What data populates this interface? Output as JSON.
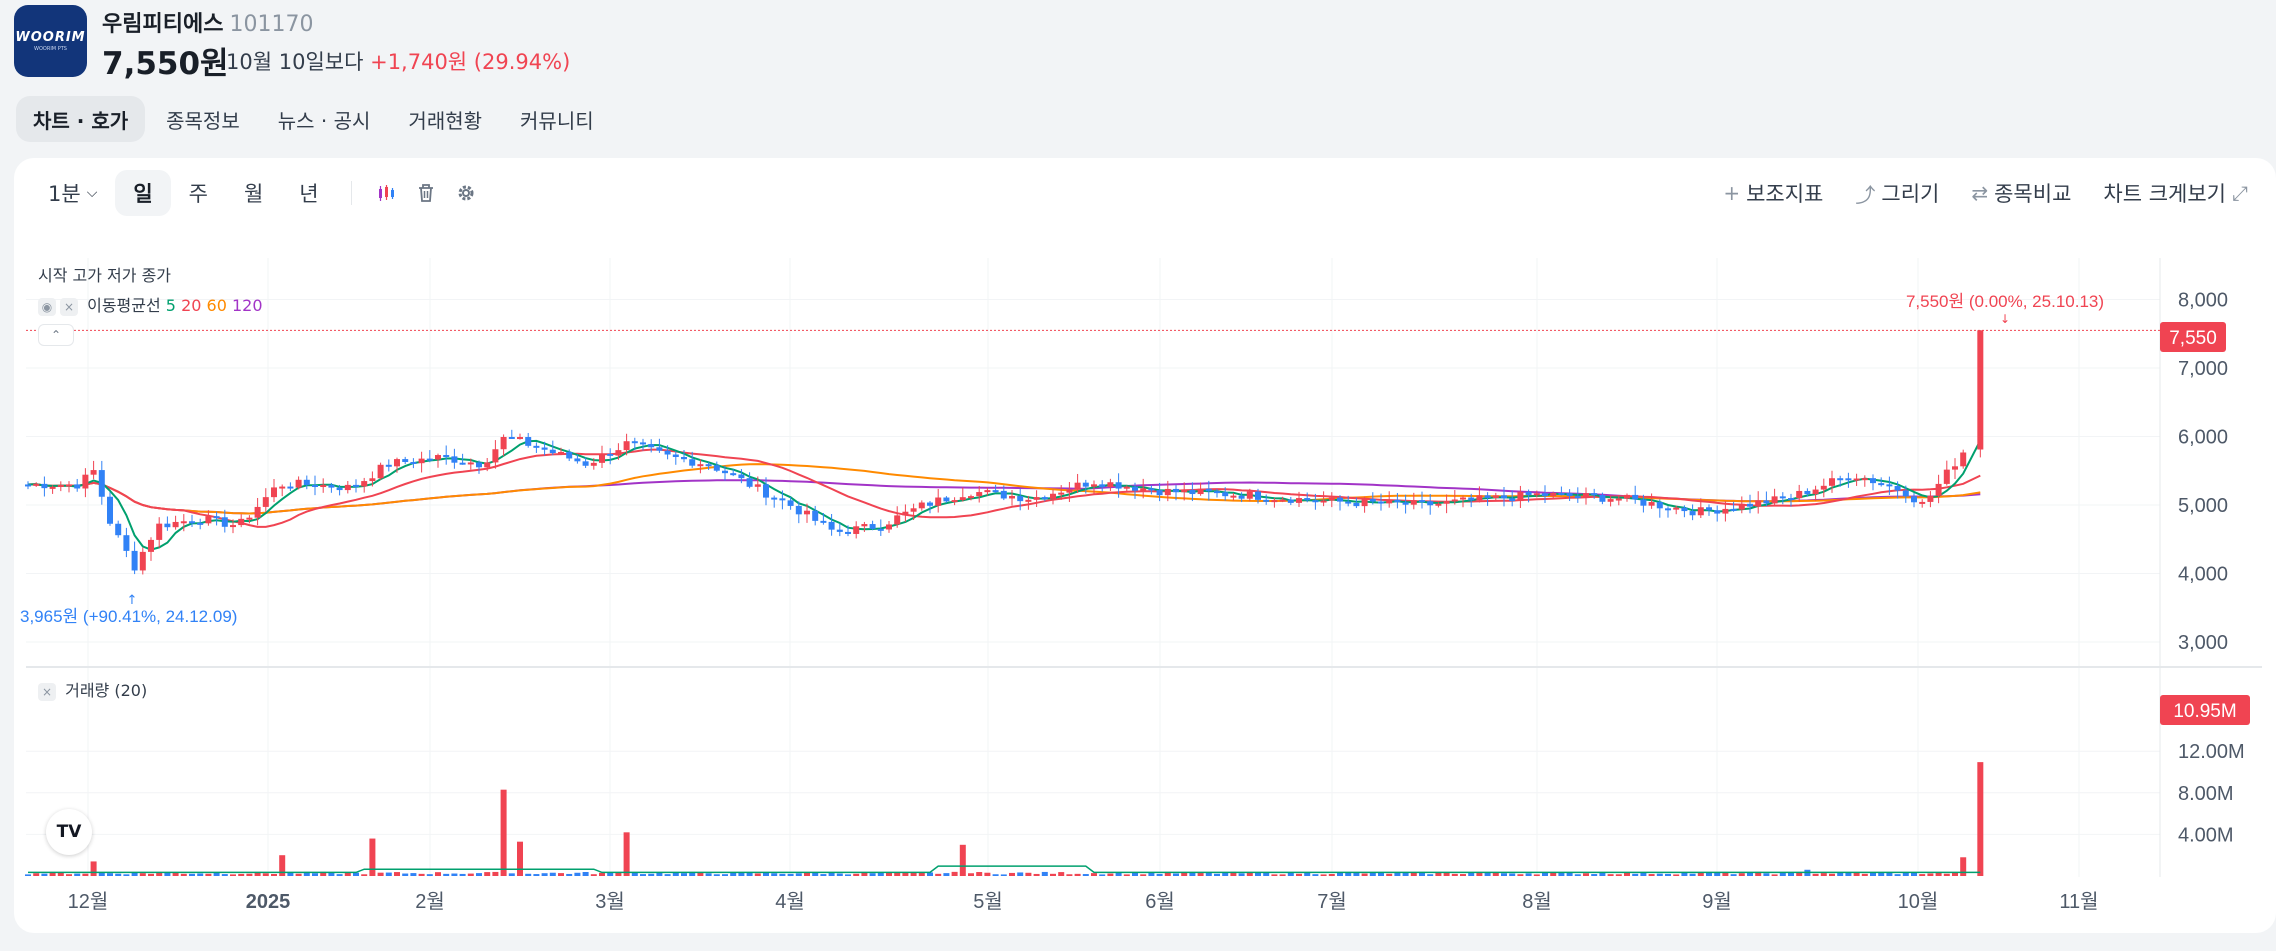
{
  "stock": {
    "logo_text": "WOORIM",
    "logo_sub": "WOORIM PTS",
    "name": "우림피티에스",
    "code": "101170",
    "price": "7,550원",
    "change_label": "10월 10일보다",
    "change_value": "+1,740원 (29.94%)"
  },
  "tabs": [
    "차트 · 호가",
    "종목정보",
    "뉴스 · 공시",
    "거래현황",
    "커뮤니티"
  ],
  "toolbar": {
    "interval": "1분",
    "periods": [
      "일",
      "주",
      "월",
      "년"
    ],
    "indicator_label": "보조지표",
    "draw_label": "그리기",
    "compare_label": "종목비교",
    "expand_label": "차트 크게보기"
  },
  "legend": {
    "ohlc": "시작 고가 저가 종가",
    "ma_label": "이동평균선",
    "ma5": "5",
    "ma20": "20",
    "ma60": "60",
    "ma120": "120",
    "volume_label": "거래량 (20)"
  },
  "annotations": {
    "high": "7,550원 (0.00%, 25.10.13)",
    "low": "3,965원 (+90.41%, 24.12.09)",
    "price_tag": "7,550",
    "volume_tag": "10.95M"
  },
  "tv_logo": "TV",
  "colors": {
    "up": "#f04452",
    "down": "#3182f6",
    "ma5": "#00a06e",
    "ma20": "#f04452",
    "ma60": "#ff8a00",
    "ma120": "#a234c7"
  },
  "chart_data": {
    "type": "candlestick",
    "price_axis": {
      "ticks": [
        3000,
        4000,
        5000,
        6000,
        7000,
        8000
      ],
      "tick_labels": [
        "3,000",
        "4,000",
        "5,000",
        "6,000",
        "7,000",
        "8,000"
      ]
    },
    "volume_axis": {
      "tick_labels": [
        "4.00M",
        "8.00M",
        "12.00M"
      ],
      "ticks": [
        4,
        8,
        12
      ],
      "unit": "M"
    },
    "x_tick_labels": [
      "12월",
      "2025",
      "2월",
      "3월",
      "4월",
      "5월",
      "6월",
      "7월",
      "8월",
      "9월",
      "10월",
      "11월"
    ],
    "price_points": [
      {
        "x": "24.11.28",
        "close": 5300
      },
      {
        "x": "24.12.02",
        "close": 5500
      },
      {
        "x": "24.12.05",
        "close": 4700
      },
      {
        "x": "24.12.09",
        "close": 4100
      },
      {
        "x": "24.12.13",
        "close": 4700
      },
      {
        "x": "24.12.20",
        "close": 4800
      },
      {
        "x": "24.12.27",
        "close": 4700
      },
      {
        "x": "25.01.03",
        "close": 5300
      },
      {
        "x": "25.01.10",
        "close": 5300
      },
      {
        "x": "25.01.17",
        "close": 5250
      },
      {
        "x": "25.01.24",
        "close": 5600
      },
      {
        "x": "25.02.03",
        "close": 5700
      },
      {
        "x": "25.02.10",
        "close": 5600
      },
      {
        "x": "25.02.14",
        "close": 6000
      },
      {
        "x": "25.02.21",
        "close": 5800
      },
      {
        "x": "25.02.28",
        "close": 5600
      },
      {
        "x": "25.03.04",
        "close": 5900
      },
      {
        "x": "25.03.11",
        "close": 5700
      },
      {
        "x": "25.03.18",
        "close": 5600
      },
      {
        "x": "25.03.25",
        "close": 5300
      },
      {
        "x": "25.04.01",
        "close": 5000
      },
      {
        "x": "25.04.08",
        "close": 4600
      },
      {
        "x": "25.04.15",
        "close": 4700
      },
      {
        "x": "25.04.22",
        "close": 5000
      },
      {
        "x": "25.04.29",
        "close": 5200
      },
      {
        "x": "25.05.09",
        "close": 5100
      },
      {
        "x": "25.05.20",
        "close": 5350
      },
      {
        "x": "25.06.02",
        "close": 5200
      },
      {
        "x": "25.06.16",
        "close": 5150
      },
      {
        "x": "25.07.01",
        "close": 5050
      },
      {
        "x": "25.07.15",
        "close": 5000
      },
      {
        "x": "25.08.01",
        "close": 5150
      },
      {
        "x": "25.08.15",
        "close": 5100
      },
      {
        "x": "25.08.29",
        "close": 4900
      },
      {
        "x": "25.09.12",
        "close": 5100
      },
      {
        "x": "25.09.22",
        "close": 5450
      },
      {
        "x": "25.09.30",
        "close": 5200
      },
      {
        "x": "25.10.02",
        "close": 5000
      },
      {
        "x": "25.10.10",
        "close": 5810
      },
      {
        "x": "25.10.13",
        "close": 7550
      }
    ],
    "volume_points": [
      {
        "x": "24.12.02",
        "value": 1.4
      },
      {
        "x": "25.01.03",
        "value": 2.0
      },
      {
        "x": "25.01.21",
        "value": 3.6
      },
      {
        "x": "25.02.14",
        "value": 8.3
      },
      {
        "x": "25.02.17",
        "value": 3.3
      },
      {
        "x": "25.03.04",
        "value": 4.2
      },
      {
        "x": "25.04.28",
        "value": 3.0
      },
      {
        "x": "25.09.15",
        "value": 0.6
      },
      {
        "x": "25.10.10",
        "value": 1.8
      },
      {
        "x": "25.10.13",
        "value": 10.95
      }
    ]
  }
}
